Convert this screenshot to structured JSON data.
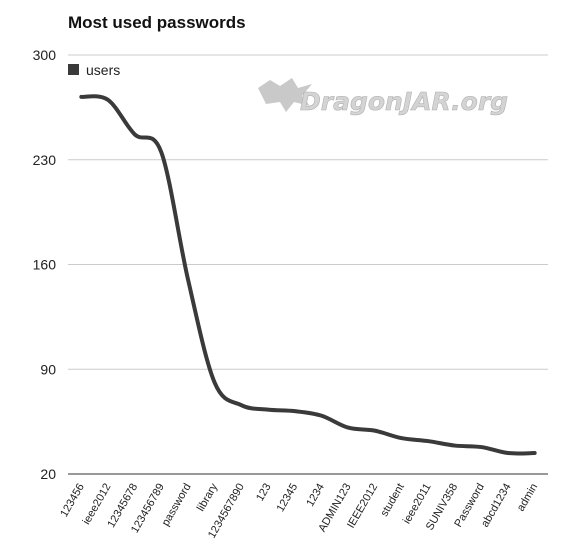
{
  "chart_data": {
    "type": "line",
    "title": "Most used passwords",
    "categories": [
      "123456",
      "ieee2012",
      "12345678",
      "123456789",
      "password",
      "library",
      "1234567890",
      "123",
      "12345",
      "1234",
      "ADMIN123",
      "IEEE2012",
      "student",
      "ieee2011",
      "SUNIV358",
      "Password",
      "abcd1234",
      "admin"
    ],
    "series": [
      {
        "name": "users",
        "color": "#3a3a3a",
        "values": [
          272,
          270,
          247,
          235,
          150,
          81,
          66,
          63,
          62,
          59,
          51,
          49,
          44,
          42,
          39,
          38,
          34,
          34
        ]
      }
    ],
    "yticks": [
      "300",
      "230",
      "160",
      "90",
      "20"
    ],
    "ylim": [
      20,
      300
    ],
    "grid": true,
    "legend": "top-left",
    "watermark": "DragonJAR.org"
  }
}
